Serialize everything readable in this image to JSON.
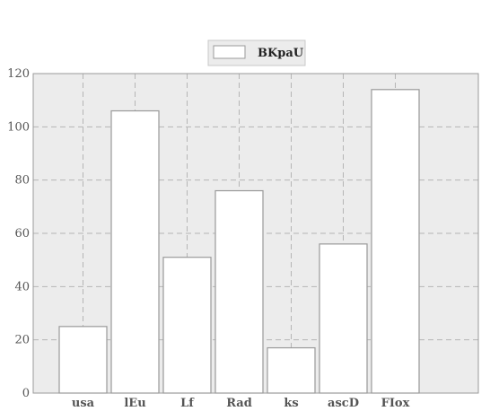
{
  "chart_data": {
    "type": "bar",
    "title": "",
    "xlabel": "",
    "ylabel": "",
    "categories": [
      "usa",
      "lEu",
      "Lf",
      "Rad",
      "ks",
      "ascD",
      "FIox"
    ],
    "series": [
      {
        "name": "BKpaU",
        "values": [
          25,
          106,
          51,
          76,
          17,
          56,
          114
        ]
      }
    ],
    "ylim": [
      0,
      120
    ],
    "yticks": [
      0,
      20,
      40,
      60,
      80,
      100,
      120
    ],
    "grid": true,
    "legend_position": "top-center",
    "colors": {
      "background": "#ececec",
      "bar_fill": "#ffffff",
      "bar_stroke": "#9a9a9a",
      "grid": "#b5b5b5",
      "axis": "#9a9a9a"
    }
  }
}
